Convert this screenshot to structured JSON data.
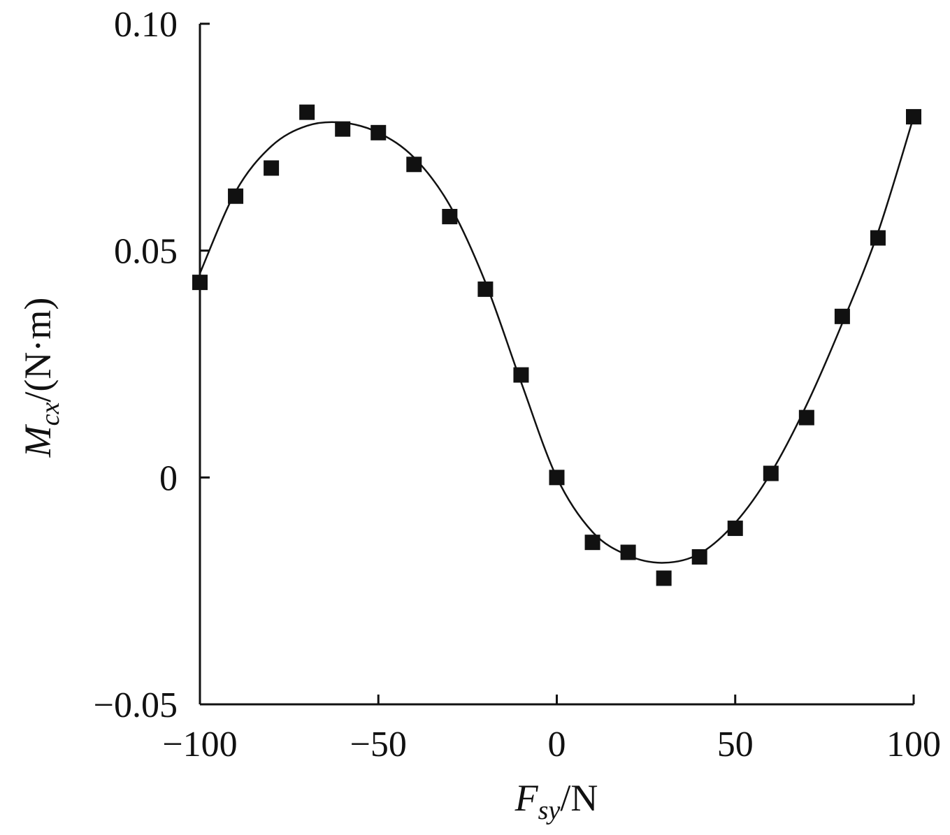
{
  "chart_data": {
    "type": "scatter",
    "title": "",
    "xlabel": {
      "main": "F",
      "sub": "sy",
      "suffix": "/N"
    },
    "ylabel": {
      "main": "M",
      "sub": "cx",
      "suffix": "/(N·m)"
    },
    "xlim": [
      -100,
      100
    ],
    "ylim": [
      -0.05,
      0.1
    ],
    "x_ticks": [
      -100,
      -50,
      0,
      50,
      100
    ],
    "x_tick_labels": [
      "−100",
      "−50",
      "0",
      "50",
      "100"
    ],
    "y_ticks": [
      -0.05,
      0,
      0.05,
      0.1
    ],
    "y_tick_labels": [
      "−0.05",
      "0",
      "0.05",
      "0.10"
    ],
    "grid": false,
    "colors": {
      "marker": "#111111",
      "line": "#111111",
      "axis": "#111111"
    },
    "series": [
      {
        "kind": "points",
        "marker": "square",
        "x": [
          -100,
          -90,
          -80,
          -70,
          -60,
          -50,
          -40,
          -30,
          -20,
          -10,
          0,
          10,
          20,
          30,
          40,
          50,
          60,
          70,
          80,
          90,
          100
        ],
        "y": [
          0.043,
          0.062,
          0.0682,
          0.0805,
          0.0768,
          0.076,
          0.069,
          0.0575,
          0.0415,
          0.0226,
          0.0,
          -0.0143,
          -0.0165,
          -0.0222,
          -0.0175,
          -0.0112,
          0.0009,
          0.0132,
          0.0355,
          0.0528,
          0.0795
        ]
      },
      {
        "kind": "fit-line",
        "x": [
          -100,
          -90,
          -80,
          -70,
          -60,
          -50,
          -40,
          -30,
          -20,
          -10,
          0,
          10,
          20,
          30,
          40,
          50,
          60,
          70,
          80,
          90,
          100
        ],
        "y": [
          0.045,
          0.063,
          0.073,
          0.0775,
          0.0782,
          0.076,
          0.0705,
          0.06,
          0.043,
          0.021,
          0.0,
          -0.012,
          -0.0172,
          -0.0188,
          -0.0168,
          -0.01,
          0.001,
          0.016,
          0.034,
          0.054,
          0.0795
        ]
      }
    ]
  }
}
